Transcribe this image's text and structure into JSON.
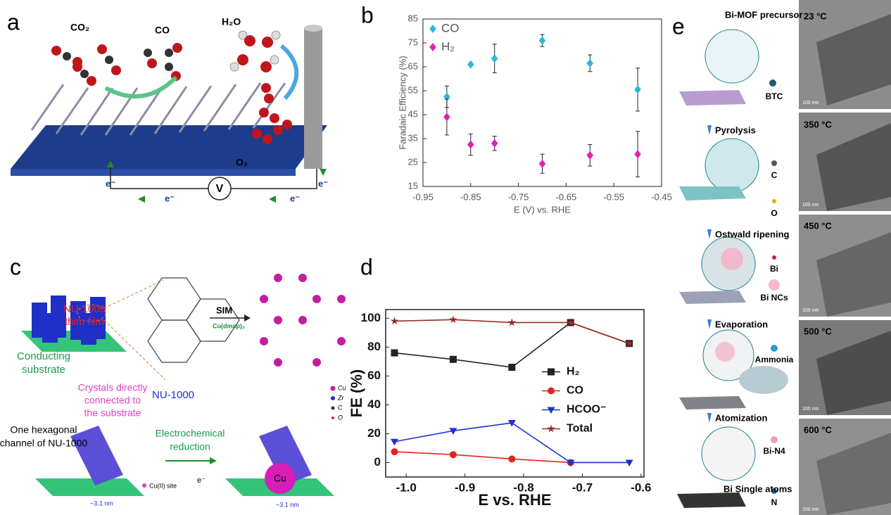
{
  "panel_labels": [
    "a",
    "b",
    "c",
    "d",
    "e"
  ],
  "panel_a": {
    "co2": "CO₂",
    "co": "CO",
    "h2o": "H₂O",
    "o2": "O₂",
    "meter": "V",
    "electrons": [
      "e⁻",
      "e⁻",
      "e⁻",
      "e⁻"
    ]
  },
  "panel_c": {
    "film": [
      "NU-1000",
      "thim film"
    ],
    "substrate": [
      "Conducting",
      "substrate"
    ],
    "crystals": [
      "Crystals directly",
      "connected to",
      "the substrate"
    ],
    "framework": "NU-1000",
    "sim": "SIM",
    "reagent": "Cu(dmap)₂",
    "legend": [
      "Cu",
      "Zr",
      "C",
      "O"
    ],
    "channel": [
      "One hexagonal",
      "channel of NU-1000"
    ],
    "reduction": [
      "Electrochemical",
      "reduction"
    ],
    "site": "Cu(II) site",
    "particle": "Cu",
    "sizes": [
      "~3.1 nm",
      "~3.1 nm"
    ],
    "electron": "e⁻"
  },
  "panel_e": {
    "steps": [
      "Bi-MOF precursor",
      "Pyrolysis",
      "Ostwald ripening",
      "Evaporation",
      "Atomization",
      "Bi Single atoms"
    ],
    "species": [
      "BTC",
      "C",
      "O",
      "Bi",
      "Bi NCs",
      "Ammonia",
      "Bi-N4",
      "N"
    ],
    "temperatures": [
      "23 °C",
      "350 °C",
      "450 °C",
      "500 °C",
      "600 °C"
    ],
    "scale_bars": [
      "100 nm",
      "100 nm",
      "100 nm",
      "100 nm",
      "100 nm"
    ]
  },
  "chart_data": [
    {
      "type": "scatter",
      "x_label": "E (V) vs. RHE",
      "y_label": "Faradaic Efficiency (%)",
      "x": [
        -0.9,
        -0.85,
        -0.8,
        -0.7,
        -0.6,
        -0.5
      ],
      "series": [
        {
          "name": "CO",
          "color": "#2bb8d8",
          "marker": "diamond",
          "values": [
            52.5,
            66,
            68.5,
            76,
            66.5,
            55.5
          ],
          "errors": [
            4.5,
            0,
            6,
            2.5,
            3.5,
            9
          ]
        },
        {
          "name": "H₂",
          "color": "#e022b4",
          "marker": "diamond",
          "values": [
            44,
            32.5,
            33,
            24.5,
            28,
            28.5
          ],
          "errors": [
            7.5,
            4.5,
            3,
            4,
            4.5,
            9.5
          ]
        }
      ],
      "xlim": [
        -0.95,
        -0.45
      ],
      "xticks": [
        -0.95,
        -0.85,
        -0.75,
        -0.65,
        -0.55,
        -0.45
      ],
      "ylim": [
        15,
        85
      ],
      "yticks": [
        15,
        25,
        35,
        45,
        55,
        65,
        75,
        85
      ],
      "legend": "upper left"
    },
    {
      "type": "line",
      "x_label": "E vs. RHE",
      "y_label": "FE (%)",
      "x": [
        -1.02,
        -0.92,
        -0.82,
        -0.72,
        -0.62
      ],
      "series": [
        {
          "name": "H₂",
          "color": "#222222",
          "marker": "square",
          "values": [
            76,
            71.5,
            66,
            97,
            82.5
          ]
        },
        {
          "name": "CO",
          "color": "#e8211d",
          "marker": "circle",
          "values": [
            7.5,
            5.5,
            2.5,
            0,
            null
          ]
        },
        {
          "name": "HCOO⁻",
          "color": "#1f2fd6",
          "marker": "triangle-down",
          "values": [
            14.5,
            22,
            27.5,
            0,
            0
          ]
        },
        {
          "name": "Total",
          "color": "#9b2a2a",
          "marker": "star",
          "values": [
            98,
            99,
            97,
            97,
            82.5
          ]
        }
      ],
      "xlim": [
        -1.035,
        -0.595
      ],
      "xticks": [
        {
          "value": -1,
          "label": "-1.0"
        },
        -0.9,
        -0.8,
        -0.7,
        -0.6
      ],
      "ylim": [
        -10,
        106
      ],
      "yticks": [
        0,
        20,
        40,
        60,
        80,
        100
      ],
      "legend": "center right"
    }
  ]
}
